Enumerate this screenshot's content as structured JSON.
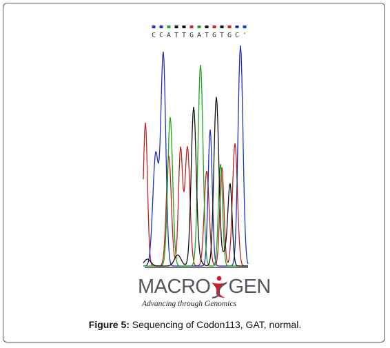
{
  "figure": {
    "label": "Figure 5:",
    "caption": " Sequencing of Codon113, GAT, normal."
  },
  "sequence": {
    "text": "CCATTGATGTGC'",
    "bases": [
      "C",
      "C",
      "A",
      "T",
      "T",
      "G",
      "A",
      "T",
      "G",
      "T",
      "G",
      "C",
      "'"
    ],
    "marker_colors": [
      "#2233cc",
      "#2233cc",
      "#22aa22",
      "#111111",
      "#111111",
      "#cc2222",
      "#22aa22",
      "#111111",
      "#cc2222",
      "#111111",
      "#cc2222",
      "#2233cc",
      "#2233cc"
    ]
  },
  "trace_colors": {
    "A": "#1aa51a",
    "C": "#1a2fc0",
    "G": "#111111",
    "T": "#c02020"
  },
  "logo": {
    "word_left": "MACRO",
    "word_right": "GEN",
    "tagline": "Advancing through Genomics",
    "figure_color": "#c8202a",
    "text_color": "#55555f"
  }
}
